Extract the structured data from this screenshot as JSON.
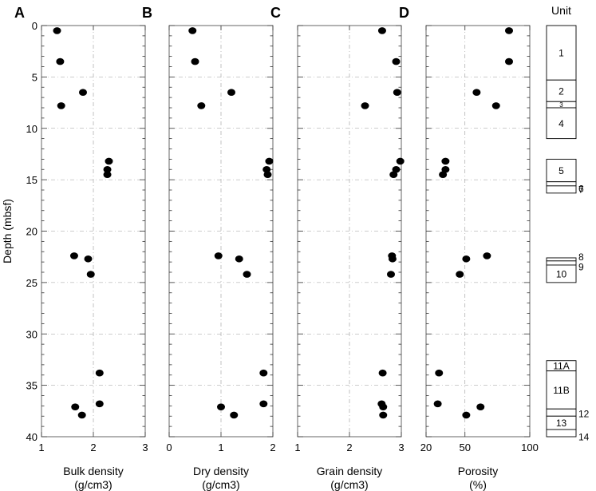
{
  "chart_data": [
    {
      "type": "scatter",
      "panel": "A",
      "xlabel": "Bulk density",
      "xunit": "(g/cm3)",
      "xlim": [
        1,
        3
      ],
      "xticks": [
        1,
        2,
        3
      ],
      "ylabel": "Depth (mbsf)",
      "ylim": [
        0,
        40
      ],
      "yticks": [
        0,
        5,
        10,
        15,
        20,
        25,
        30,
        35,
        40
      ],
      "grid": true,
      "points": [
        {
          "x": 1.3,
          "y": 0.5
        },
        {
          "x": 1.36,
          "y": 3.5
        },
        {
          "x": 1.8,
          "y": 6.5
        },
        {
          "x": 1.38,
          "y": 7.8
        },
        {
          "x": 2.3,
          "y": 13.2
        },
        {
          "x": 2.27,
          "y": 14.0
        },
        {
          "x": 2.27,
          "y": 14.5
        },
        {
          "x": 1.63,
          "y": 22.4
        },
        {
          "x": 1.9,
          "y": 22.7
        },
        {
          "x": 1.95,
          "y": 24.2
        },
        {
          "x": 2.12,
          "y": 33.8
        },
        {
          "x": 2.12,
          "y": 36.8
        },
        {
          "x": 1.65,
          "y": 37.1
        },
        {
          "x": 1.78,
          "y": 37.9
        }
      ]
    },
    {
      "type": "scatter",
      "panel": "B",
      "xlabel": "Dry density",
      "xunit": "(g/cm3)",
      "xlim": [
        0,
        2
      ],
      "xticks": [
        0,
        1,
        2
      ],
      "ylim": [
        0,
        40
      ],
      "yticks": [
        0,
        5,
        10,
        15,
        20,
        25,
        30,
        35,
        40
      ],
      "grid": true,
      "points": [
        {
          "x": 0.45,
          "y": 0.5
        },
        {
          "x": 0.5,
          "y": 3.5
        },
        {
          "x": 1.2,
          "y": 6.5
        },
        {
          "x": 0.62,
          "y": 7.8
        },
        {
          "x": 1.93,
          "y": 13.2
        },
        {
          "x": 1.88,
          "y": 14.0
        },
        {
          "x": 1.9,
          "y": 14.5
        },
        {
          "x": 0.95,
          "y": 22.4
        },
        {
          "x": 1.35,
          "y": 22.7
        },
        {
          "x": 1.5,
          "y": 24.2
        },
        {
          "x": 1.82,
          "y": 33.8
        },
        {
          "x": 1.82,
          "y": 36.8
        },
        {
          "x": 1.0,
          "y": 37.1
        },
        {
          "x": 1.25,
          "y": 37.9
        }
      ]
    },
    {
      "type": "scatter",
      "panel": "C",
      "xlabel": "Grain density",
      "xunit": "(g/cm3)",
      "xlim": [
        1,
        3
      ],
      "xticks": [
        1,
        2,
        3
      ],
      "ylim": [
        0,
        40
      ],
      "yticks": [
        0,
        5,
        10,
        15,
        20,
        25,
        30,
        35,
        40
      ],
      "grid": true,
      "points": [
        {
          "x": 2.63,
          "y": 0.5
        },
        {
          "x": 2.9,
          "y": 3.5
        },
        {
          "x": 2.92,
          "y": 6.5
        },
        {
          "x": 2.3,
          "y": 7.8
        },
        {
          "x": 2.98,
          "y": 13.2
        },
        {
          "x": 2.9,
          "y": 14.0
        },
        {
          "x": 2.85,
          "y": 14.5
        },
        {
          "x": 2.82,
          "y": 22.4
        },
        {
          "x": 2.83,
          "y": 22.7
        },
        {
          "x": 2.8,
          "y": 24.2
        },
        {
          "x": 2.64,
          "y": 33.8
        },
        {
          "x": 2.62,
          "y": 36.8
        },
        {
          "x": 2.65,
          "y": 37.1
        },
        {
          "x": 2.65,
          "y": 37.9
        }
      ]
    },
    {
      "type": "scatter",
      "panel": "D",
      "xlabel": "Porosity",
      "xunit": "(%)",
      "xlim": [
        20,
        100
      ],
      "xticks": [
        20,
        50,
        100
      ],
      "ylim": [
        0,
        40
      ],
      "yticks": [
        0,
        5,
        10,
        15,
        20,
        25,
        30,
        35,
        40
      ],
      "grid": true,
      "points": [
        {
          "x": 84,
          "y": 0.5
        },
        {
          "x": 84,
          "y": 3.5
        },
        {
          "x": 59,
          "y": 6.5
        },
        {
          "x": 74,
          "y": 7.8
        },
        {
          "x": 35,
          "y": 13.2
        },
        {
          "x": 35,
          "y": 14.0
        },
        {
          "x": 33,
          "y": 14.5
        },
        {
          "x": 67,
          "y": 22.4
        },
        {
          "x": 51,
          "y": 22.7
        },
        {
          "x": 46,
          "y": 24.2
        },
        {
          "x": 30,
          "y": 33.8
        },
        {
          "x": 29,
          "y": 36.8
        },
        {
          "x": 62,
          "y": 37.1
        },
        {
          "x": 51,
          "y": 37.9
        }
      ]
    }
  ],
  "units_column": {
    "title": "Unit",
    "ylim": [
      0,
      40
    ],
    "units": [
      {
        "label": "1",
        "top": 0,
        "bottom": 5.3
      },
      {
        "label": "2",
        "top": 5.3,
        "bottom": 7.4
      },
      {
        "label": "3",
        "top": 7.4,
        "bottom": 8.0
      },
      {
        "label": "4",
        "top": 8.0,
        "bottom": 11.0
      },
      {
        "label": "5",
        "top": 13.0,
        "bottom": 15.2
      },
      {
        "label": "6",
        "top": 15.2,
        "bottom": 15.6
      },
      {
        "label": "7",
        "top": 15.6,
        "bottom": 16.3
      },
      {
        "label": "8",
        "top": 22.6,
        "bottom": 22.9
      },
      {
        "label": "9",
        "top": 22.9,
        "bottom": 23.3
      },
      {
        "label": "10",
        "top": 23.3,
        "bottom": 25.0
      },
      {
        "label": "11A",
        "top": 32.6,
        "bottom": 33.6
      },
      {
        "label": "11B",
        "top": 33.6,
        "bottom": 37.3
      },
      {
        "label": "12",
        "top": 37.3,
        "bottom": 38.0
      },
      {
        "label": "13",
        "top": 38.0,
        "bottom": 39.3
      },
      {
        "label": "14",
        "top": 39.3,
        "bottom": 40.0
      }
    ]
  }
}
